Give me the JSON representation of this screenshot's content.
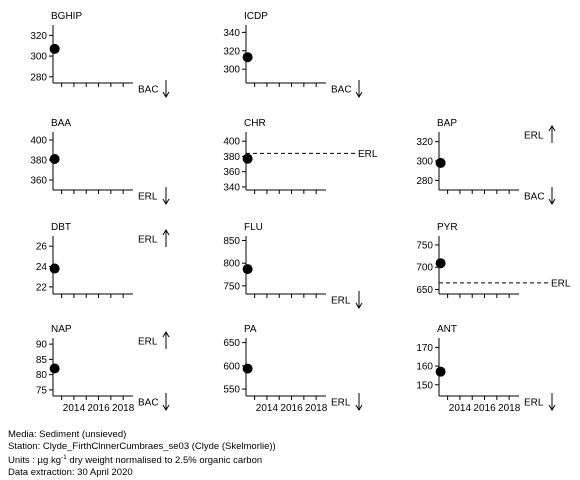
{
  "chart_data": [
    {
      "type": "scatter",
      "title": "BGHIP",
      "x": [
        2013
      ],
      "y": [
        307
      ],
      "xticks": [
        2014,
        2016,
        2018
      ],
      "xlim": [
        2012.3,
        2018.8
      ],
      "yticks": [
        280,
        300,
        320
      ],
      "ylim": [
        274,
        330
      ],
      "show_xlabels": false,
      "reference_lines": [
        {
          "label": "BAC",
          "status": "off-scale",
          "direction": "below",
          "arrow": "down"
        }
      ]
    },
    {
      "type": "scatter",
      "title": "ICDP",
      "x": [
        2013
      ],
      "y": [
        313
      ],
      "xticks": [
        2014,
        2016,
        2018
      ],
      "xlim": [
        2012.3,
        2018.8
      ],
      "yticks": [
        300,
        320,
        340
      ],
      "ylim": [
        285,
        348
      ],
      "show_xlabels": false,
      "reference_lines": [
        {
          "label": "BAC",
          "status": "off-scale",
          "direction": "below",
          "arrow": "down"
        }
      ]
    },
    {
      "type": "scatter",
      "title": "BAA",
      "x": [
        2013
      ],
      "y": [
        381
      ],
      "xticks": [
        2014,
        2016,
        2018
      ],
      "xlim": [
        2012.3,
        2018.8
      ],
      "yticks": [
        360,
        380,
        400
      ],
      "ylim": [
        350,
        408
      ],
      "show_xlabels": false,
      "reference_lines": [
        {
          "label": "ERL",
          "status": "off-scale",
          "direction": "below",
          "arrow": "down"
        }
      ]
    },
    {
      "type": "scatter",
      "title": "CHR",
      "x": [
        2013
      ],
      "y": [
        377
      ],
      "xticks": [
        2014,
        2016,
        2018
      ],
      "xlim": [
        2012.3,
        2018.8
      ],
      "yticks": [
        340,
        360,
        380,
        400
      ],
      "ylim": [
        336,
        412
      ],
      "show_xlabels": false,
      "reference_lines": [
        {
          "label": "ERL",
          "status": "line",
          "value": 384
        }
      ]
    },
    {
      "type": "scatter",
      "title": "BAP",
      "x": [
        2013
      ],
      "y": [
        298
      ],
      "xticks": [
        2014,
        2016,
        2018
      ],
      "xlim": [
        2012.3,
        2018.8
      ],
      "yticks": [
        280,
        300,
        320
      ],
      "ylim": [
        270,
        330
      ],
      "show_xlabels": false,
      "reference_lines": [
        {
          "label": "ERL",
          "status": "off-scale",
          "direction": "above",
          "arrow": "up"
        },
        {
          "label": "BAC",
          "status": "off-scale",
          "direction": "below",
          "arrow": "down"
        }
      ]
    },
    {
      "type": "scatter",
      "title": "DBT",
      "x": [
        2013
      ],
      "y": [
        23.8
      ],
      "xticks": [
        2014,
        2016,
        2018
      ],
      "xlim": [
        2012.3,
        2018.8
      ],
      "yticks": [
        22,
        24,
        26
      ],
      "ylim": [
        21.3,
        27
      ],
      "show_xlabels": false,
      "reference_lines": [
        {
          "label": "ERL",
          "status": "off-scale",
          "direction": "above",
          "arrow": "up"
        }
      ]
    },
    {
      "type": "scatter",
      "title": "FLU",
      "x": [
        2013
      ],
      "y": [
        787
      ],
      "xticks": [
        2014,
        2016,
        2018
      ],
      "xlim": [
        2012.3,
        2018.8
      ],
      "yticks": [
        750,
        800,
        850
      ],
      "ylim": [
        732,
        860
      ],
      "show_xlabels": false,
      "reference_lines": [
        {
          "label": "ERL",
          "status": "off-scale",
          "direction": "below",
          "arrow": "down"
        }
      ]
    },
    {
      "type": "scatter",
      "title": "PYR",
      "x": [
        2013
      ],
      "y": [
        709
      ],
      "xticks": [
        2014,
        2016,
        2018
      ],
      "xlim": [
        2012.3,
        2018.8
      ],
      "yticks": [
        650,
        700,
        750
      ],
      "ylim": [
        640,
        770
      ],
      "show_xlabels": false,
      "reference_lines": [
        {
          "label": "ERL",
          "status": "line",
          "value": 665
        }
      ]
    },
    {
      "type": "scatter",
      "title": "NAP",
      "x": [
        2013
      ],
      "y": [
        82
      ],
      "xticks": [
        2014,
        2016,
        2018
      ],
      "xlim": [
        2012.3,
        2018.8
      ],
      "yticks": [
        75,
        80,
        85,
        90
      ],
      "ylim": [
        73,
        92
      ],
      "show_xlabels": true,
      "reference_lines": [
        {
          "label": "ERL",
          "status": "off-scale",
          "direction": "above",
          "arrow": "up"
        },
        {
          "label": "BAC",
          "status": "off-scale",
          "direction": "below",
          "arrow": "down"
        }
      ]
    },
    {
      "type": "scatter",
      "title": "PA",
      "x": [
        2013
      ],
      "y": [
        594
      ],
      "xticks": [
        2014,
        2016,
        2018
      ],
      "xlim": [
        2012.3,
        2018.8
      ],
      "yticks": [
        550,
        600,
        650
      ],
      "ylim": [
        535,
        660
      ],
      "show_xlabels": true,
      "reference_lines": [
        {
          "label": "ERL",
          "status": "off-scale",
          "direction": "below",
          "arrow": "down"
        }
      ]
    },
    {
      "type": "scatter",
      "title": "ANT",
      "x": [
        2013
      ],
      "y": [
        157
      ],
      "xticks": [
        2014,
        2016,
        2018
      ],
      "xlim": [
        2012.3,
        2018.8
      ],
      "yticks": [
        150,
        160,
        170
      ],
      "ylim": [
        144,
        175
      ],
      "show_xlabels": true,
      "reference_lines": [
        {
          "label": "ERL",
          "status": "off-scale",
          "direction": "below",
          "arrow": "down"
        }
      ]
    }
  ],
  "footer": {
    "media": "Media: Sediment (unsieved)",
    "station": "Station: Clyde_FirthClnnerCumbraes_se03 (Clyde (Skelmorlie))",
    "units_prefix": "Units : µg kg",
    "units_sup": "-1",
    "units_suffix": " dry weight normalised to 2.5% organic carbon",
    "extraction": "Data extraction: 30 April 2020"
  }
}
